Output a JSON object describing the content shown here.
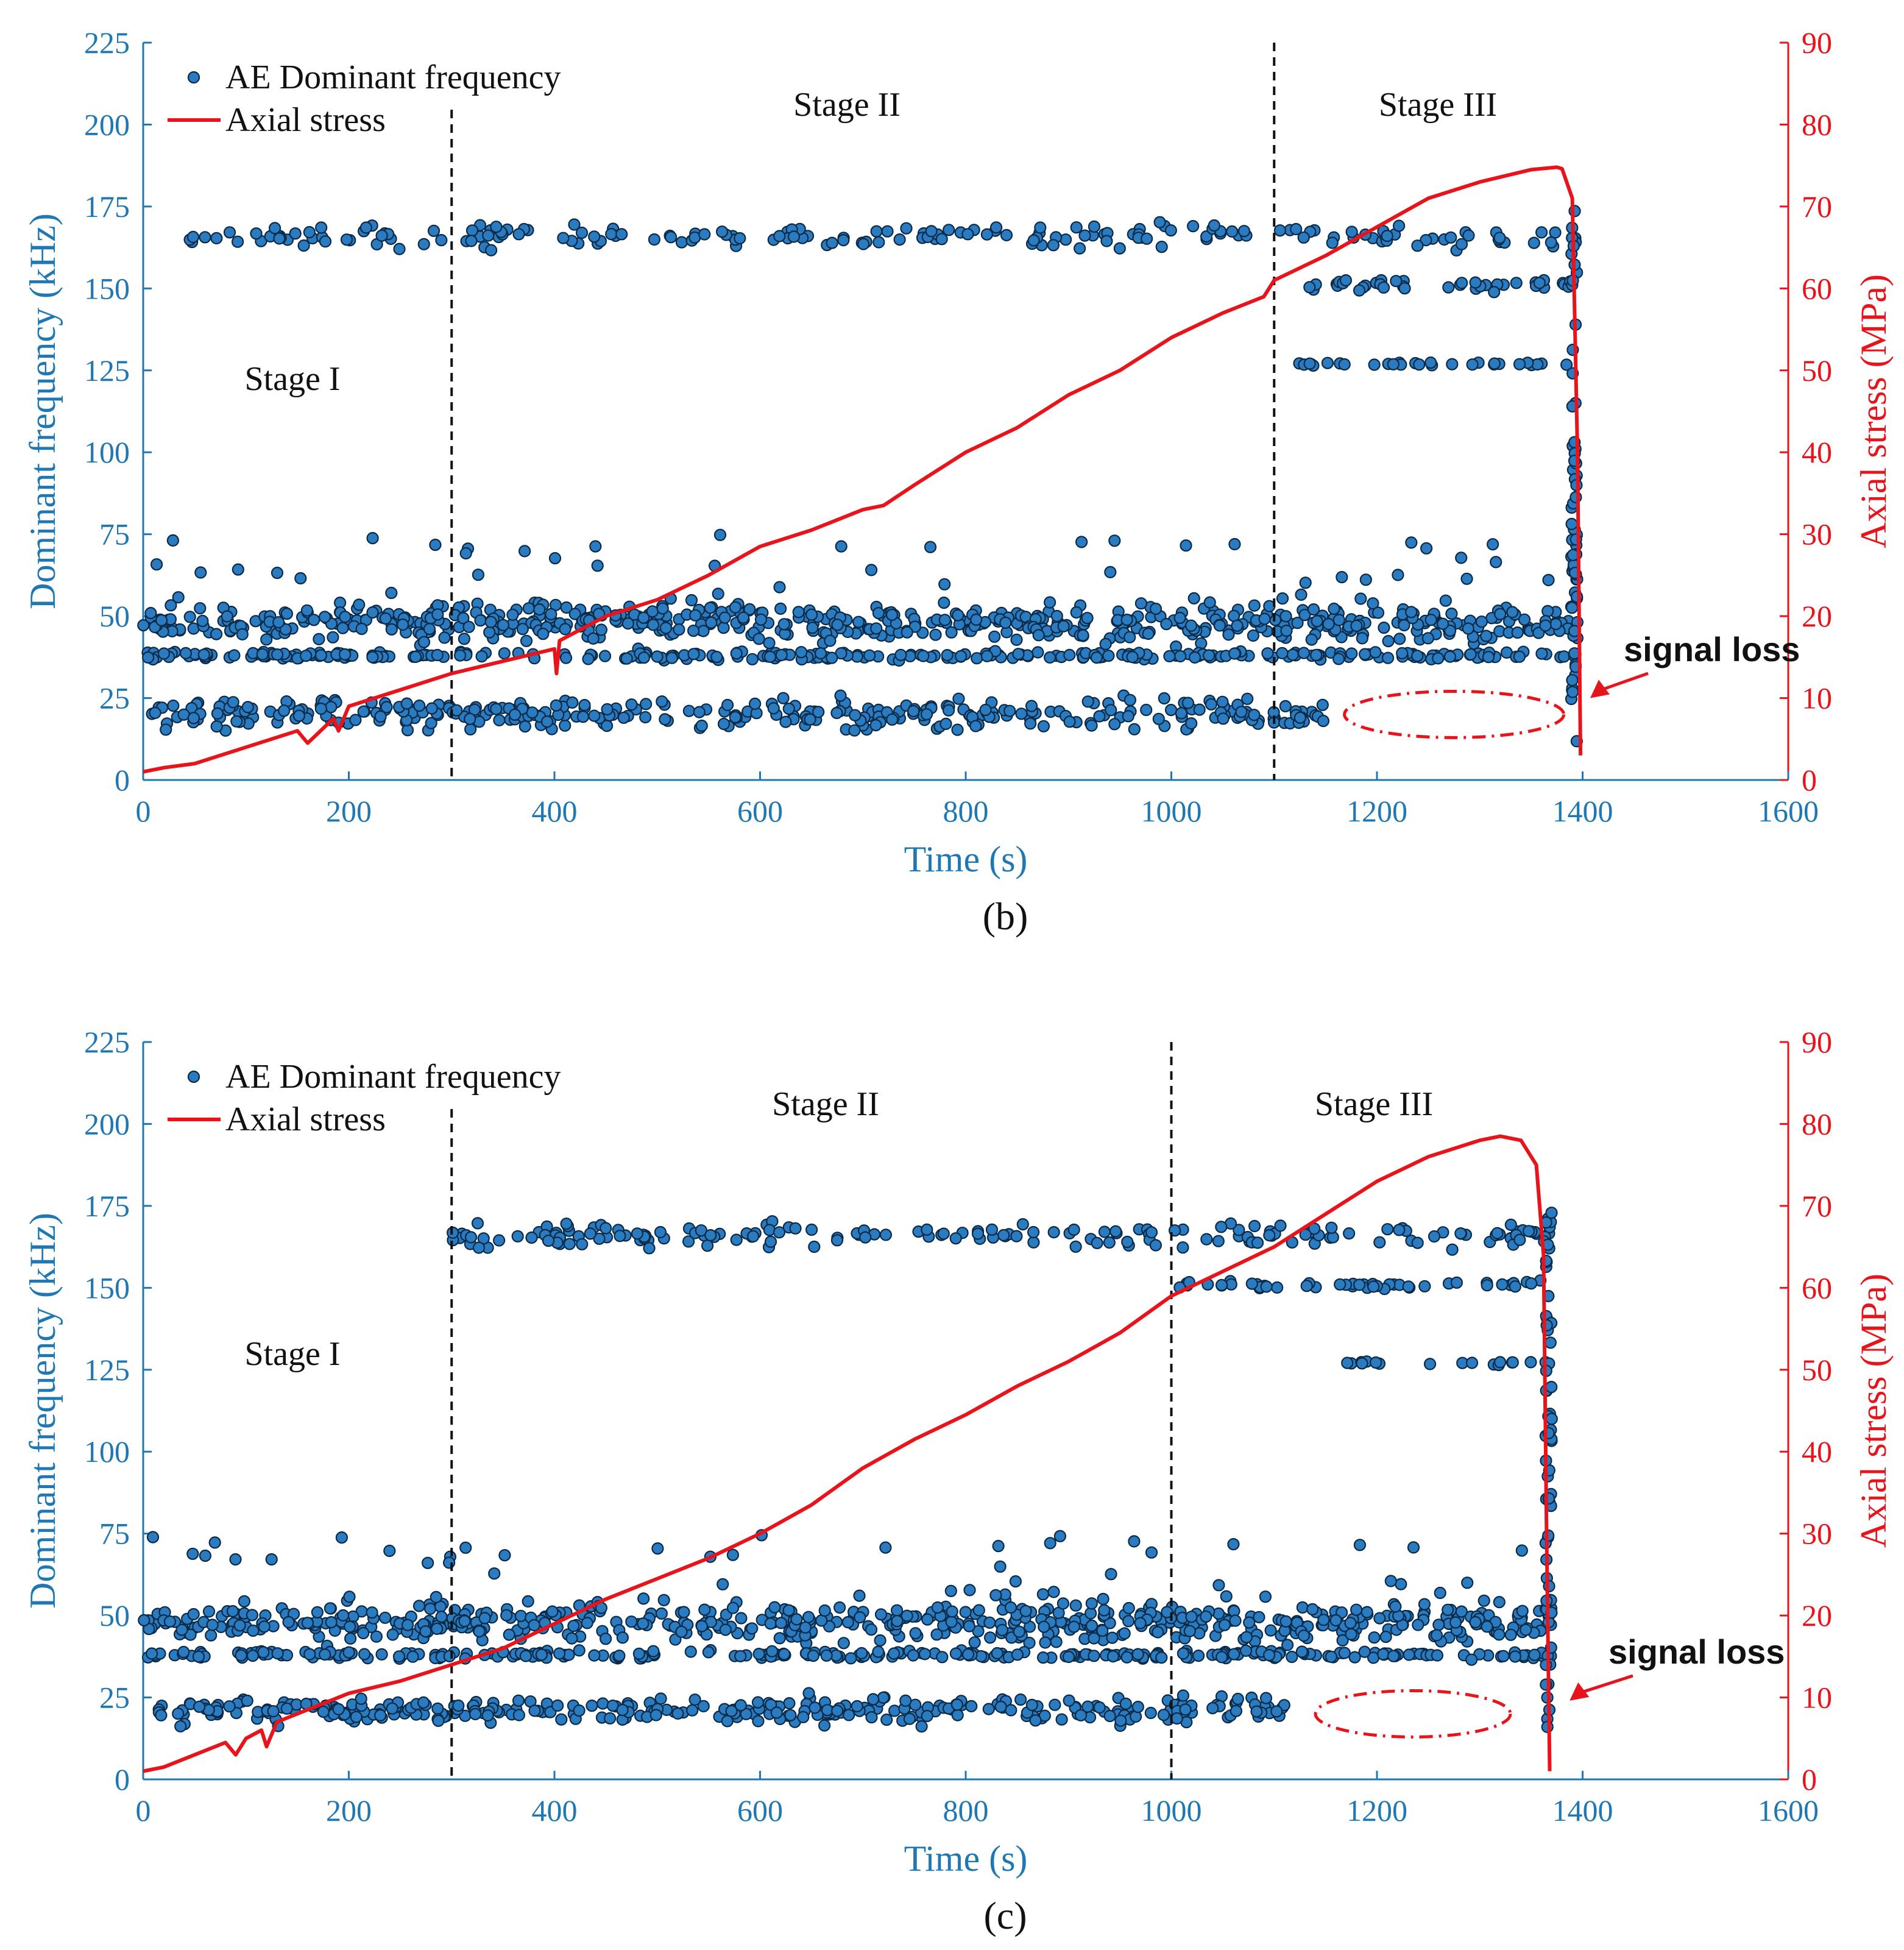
{
  "colors": {
    "dots": "#2a7bc0",
    "dot_edge": "#0b2a47",
    "stress": "#e8141b",
    "left_axis": "#1f77b4",
    "right_axis": "#e8141b",
    "divider": "#111111"
  },
  "chart_data": [
    {
      "type": "scatter",
      "panel_label": "(b)",
      "xlabel": "Time (s)",
      "ylabel": "Dominant frequency (kHz)",
      "y2label": "Axial stress (MPa)",
      "xlim": [
        0,
        1600
      ],
      "ylim": [
        0,
        225
      ],
      "y2lim": [
        0,
        90
      ],
      "xticks": [
        0,
        200,
        400,
        600,
        800,
        1000,
        1200,
        1400,
        1600
      ],
      "yticks": [
        0,
        25,
        50,
        75,
        100,
        125,
        150,
        175,
        200,
        225
      ],
      "y2ticks": [
        0,
        10,
        20,
        30,
        40,
        50,
        60,
        70,
        80,
        90
      ],
      "legend": {
        "dots": "AE Dominant frequency",
        "line": "Axial stress",
        "position": "top-left"
      },
      "stages": {
        "boundaries": [
          300,
          1100
        ],
        "labels": [
          "Stage I",
          "Stage II",
          "Stage III"
        ]
      },
      "annotation": "signal loss",
      "frequency_bands": [
        {
          "center_khz": 48,
          "spread_khz": 5,
          "t_start": 0,
          "t_end": 1395,
          "density": 1.0
        },
        {
          "center_khz": 38,
          "spread_khz": 1,
          "t_start": 0,
          "t_end": 1395,
          "density": 0.5
        },
        {
          "center_khz": 20,
          "spread_khz": 4,
          "t_start": 0,
          "t_end": 1150,
          "density": 0.7
        },
        {
          "center_khz": 166,
          "spread_khz": 3,
          "t_start": 40,
          "t_end": 1395,
          "density": 0.35
        },
        {
          "center_khz": 151,
          "spread_khz": 1.5,
          "t_start": 1120,
          "t_end": 1395,
          "density": 0.35
        },
        {
          "center_khz": 127,
          "spread_khz": 0.5,
          "t_start": 1120,
          "t_end": 1395,
          "density": 0.25
        }
      ],
      "axial_stress": {
        "t": [
          0,
          20,
          50,
          100,
          150,
          160,
          185,
          190,
          200,
          250,
          300,
          350,
          400,
          402,
          405,
          450,
          500,
          550,
          600,
          650,
          700,
          720,
          750,
          800,
          850,
          900,
          950,
          1000,
          1050,
          1090,
          1100,
          1150,
          1200,
          1250,
          1300,
          1350,
          1375,
          1380,
          1390,
          1395,
          1398
        ],
        "stress_mpa": [
          1,
          1.5,
          2,
          4,
          6,
          4.5,
          7.5,
          6,
          9,
          11,
          13,
          14.5,
          16,
          13,
          17,
          20,
          22,
          25,
          28.5,
          30.5,
          33,
          33.5,
          36,
          40,
          43,
          47,
          50,
          54,
          57,
          59,
          61,
          64,
          67.5,
          71,
          73,
          74.5,
          74.8,
          74.6,
          71,
          40,
          3
        ]
      }
    },
    {
      "type": "scatter",
      "panel_label": "(c)",
      "xlabel": "Time (s)",
      "ylabel": "Dominant frequency (kHz)",
      "y2label": "Axial stress (MPa)",
      "xlim": [
        0,
        1600
      ],
      "ylim": [
        0,
        225
      ],
      "y2lim": [
        0,
        90
      ],
      "xticks": [
        0,
        200,
        400,
        600,
        800,
        1000,
        1200,
        1400,
        1600
      ],
      "yticks": [
        0,
        25,
        50,
        75,
        100,
        125,
        150,
        175,
        200,
        225
      ],
      "y2ticks": [
        0,
        10,
        20,
        30,
        40,
        50,
        60,
        70,
        80,
        90
      ],
      "legend": {
        "dots": "AE Dominant frequency",
        "line": "Axial stress",
        "position": "top-left"
      },
      "stages": {
        "boundaries": [
          300,
          1000
        ],
        "labels": [
          "Stage I",
          "Stage II",
          "Stage III"
        ]
      },
      "annotation": "signal loss",
      "frequency_bands": [
        {
          "center_khz": 48,
          "spread_khz": 5,
          "t_start": 0,
          "t_end": 1370,
          "density": 1.0
        },
        {
          "center_khz": 38,
          "spread_khz": 1,
          "t_start": 0,
          "t_end": 1370,
          "density": 0.5
        },
        {
          "center_khz": 21,
          "spread_khz": 3.5,
          "t_start": 0,
          "t_end": 1120,
          "density": 0.7
        },
        {
          "center_khz": 166,
          "spread_khz": 3,
          "t_start": 300,
          "t_end": 1370,
          "density": 0.4
        },
        {
          "center_khz": 151,
          "spread_khz": 1,
          "t_start": 1000,
          "t_end": 1370,
          "density": 0.3
        },
        {
          "center_khz": 127,
          "spread_khz": 0.5,
          "t_start": 1150,
          "t_end": 1370,
          "density": 0.2
        }
      ],
      "axial_stress": {
        "t": [
          0,
          20,
          50,
          80,
          90,
          100,
          115,
          120,
          130,
          150,
          200,
          250,
          300,
          350,
          400,
          450,
          500,
          550,
          600,
          650,
          700,
          750,
          800,
          850,
          900,
          950,
          1000,
          1050,
          1100,
          1150,
          1200,
          1250,
          1300,
          1320,
          1340,
          1355,
          1362,
          1365,
          1368
        ],
        "stress_mpa": [
          1,
          1.5,
          3,
          4.5,
          3,
          5,
          6,
          4,
          7,
          8,
          10.5,
          12,
          14,
          16,
          19,
          22,
          24.5,
          27,
          30,
          33.5,
          38,
          41.5,
          44.5,
          48,
          51,
          54.5,
          59,
          62,
          65,
          69,
          73,
          76,
          78,
          78.5,
          78,
          75,
          64,
          30,
          1
        ]
      }
    }
  ]
}
